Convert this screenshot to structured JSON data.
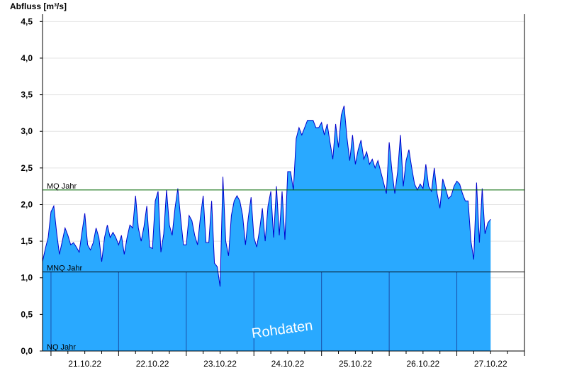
{
  "chart_data": {
    "type": "area",
    "ylabel": "Abfluss [m³/s]",
    "ylim": [
      0,
      4.6
    ],
    "yticks": [
      {
        "value": 0,
        "label": "0,0"
      },
      {
        "value": 0.5,
        "label": "0,5"
      },
      {
        "value": 1.0,
        "label": "1,0"
      },
      {
        "value": 1.5,
        "label": "1,5"
      },
      {
        "value": 2.0,
        "label": "2,0"
      },
      {
        "value": 2.5,
        "label": "2,5"
      },
      {
        "value": 3.0,
        "label": "3,0"
      },
      {
        "value": 3.5,
        "label": "3,5"
      },
      {
        "value": 4.0,
        "label": "4,0"
      },
      {
        "value": 4.5,
        "label": "4,5"
      }
    ],
    "x_unit": "hours since start of 21.10.22",
    "xlim": [
      -3,
      168
    ],
    "xticks": [
      {
        "value": 12,
        "label": "21.10.22"
      },
      {
        "value": 36,
        "label": "22.10.22"
      },
      {
        "value": 60,
        "label": "23.10.22"
      },
      {
        "value": 84,
        "label": "24.10.22"
      },
      {
        "value": 108,
        "label": "25.10.22"
      },
      {
        "value": 132,
        "label": "26.10.22"
      },
      {
        "value": 156,
        "label": "27.10.22"
      }
    ],
    "day_boundaries": [
      0,
      24,
      48,
      72,
      96,
      120,
      144,
      168
    ],
    "reference_lines": [
      {
        "name": "MQ Jahr",
        "value": 2.2,
        "color": "#006600"
      },
      {
        "name": "MNQ Jahr",
        "value": 1.08,
        "color": "#000000"
      },
      {
        "name": "NQ Jahr",
        "value": 0.0,
        "color": "#000000"
      }
    ],
    "watermark": "Rohdaten",
    "colors": {
      "fill": "#29a9ff",
      "line": "#0000cc",
      "mq": "#006600"
    },
    "series": [
      {
        "values": [
          [
            -3,
            1.22
          ],
          [
            -2,
            1.4
          ],
          [
            -1,
            1.55
          ],
          [
            0,
            1.9
          ],
          [
            1,
            1.98
          ],
          [
            2,
            1.62
          ],
          [
            3,
            1.32
          ],
          [
            4,
            1.5
          ],
          [
            5,
            1.68
          ],
          [
            6,
            1.58
          ],
          [
            7,
            1.45
          ],
          [
            8,
            1.48
          ],
          [
            9,
            1.42
          ],
          [
            10,
            1.35
          ],
          [
            11,
            1.62
          ],
          [
            12,
            1.88
          ],
          [
            13,
            1.45
          ],
          [
            14,
            1.38
          ],
          [
            15,
            1.48
          ],
          [
            16,
            1.68
          ],
          [
            17,
            1.55
          ],
          [
            18,
            1.22
          ],
          [
            19,
            1.55
          ],
          [
            20,
            1.72
          ],
          [
            21,
            1.55
          ],
          [
            22,
            1.62
          ],
          [
            23,
            1.55
          ],
          [
            24,
            1.45
          ],
          [
            25,
            1.58
          ],
          [
            26,
            1.32
          ],
          [
            27,
            1.55
          ],
          [
            28,
            1.72
          ],
          [
            29,
            1.68
          ],
          [
            30,
            2.12
          ],
          [
            31,
            1.68
          ],
          [
            32,
            1.5
          ],
          [
            33,
            1.7
          ],
          [
            34,
            1.98
          ],
          [
            35,
            1.42
          ],
          [
            36,
            1.4
          ],
          [
            37,
            2.05
          ],
          [
            38,
            2.18
          ],
          [
            39,
            1.35
          ],
          [
            40,
            1.6
          ],
          [
            41,
            2.2
          ],
          [
            42,
            1.72
          ],
          [
            43,
            1.58
          ],
          [
            44,
            1.95
          ],
          [
            45,
            2.22
          ],
          [
            46,
            1.82
          ],
          [
            47,
            1.45
          ],
          [
            48,
            1.45
          ],
          [
            49,
            1.85
          ],
          [
            50,
            1.78
          ],
          [
            51,
            1.58
          ],
          [
            52,
            1.45
          ],
          [
            53,
            1.82
          ],
          [
            54,
            2.12
          ],
          [
            55,
            1.48
          ],
          [
            56,
            1.48
          ],
          [
            57,
            2.05
          ],
          [
            58,
            1.2
          ],
          [
            59,
            1.15
          ],
          [
            60,
            0.88
          ],
          [
            61,
            2.38
          ],
          [
            62,
            1.5
          ],
          [
            63,
            1.3
          ],
          [
            64,
            1.85
          ],
          [
            65,
            2.05
          ],
          [
            66,
            2.12
          ],
          [
            67,
            2.05
          ],
          [
            68,
            1.85
          ],
          [
            69,
            1.45
          ],
          [
            70,
            1.82
          ],
          [
            71,
            2.1
          ],
          [
            72,
            1.55
          ],
          [
            73,
            1.42
          ],
          [
            74,
            1.65
          ],
          [
            75,
            1.95
          ],
          [
            76,
            1.5
          ],
          [
            77,
            1.98
          ],
          [
            78,
            2.18
          ],
          [
            79,
            1.55
          ],
          [
            80,
            2.25
          ],
          [
            81,
            1.58
          ],
          [
            82,
            2.18
          ],
          [
            83,
            1.52
          ],
          [
            84,
            2.45
          ],
          [
            85,
            2.45
          ],
          [
            86,
            2.2
          ],
          [
            87,
            2.9
          ],
          [
            88,
            3.05
          ],
          [
            89,
            2.95
          ],
          [
            90,
            3.05
          ],
          [
            91,
            3.15
          ],
          [
            92,
            3.15
          ],
          [
            93,
            3.15
          ],
          [
            94,
            3.05
          ],
          [
            95,
            3.05
          ],
          [
            96,
            3.12
          ],
          [
            97,
            2.95
          ],
          [
            98,
            3.1
          ],
          [
            99,
            2.85
          ],
          [
            100,
            2.62
          ],
          [
            101,
            3.1
          ],
          [
            102,
            2.78
          ],
          [
            103,
            3.22
          ],
          [
            104,
            3.35
          ],
          [
            105,
            2.92
          ],
          [
            106,
            2.6
          ],
          [
            107,
            2.95
          ],
          [
            108,
            2.55
          ],
          [
            109,
            2.75
          ],
          [
            110,
            2.88
          ],
          [
            111,
            2.62
          ],
          [
            112,
            2.72
          ],
          [
            113,
            2.55
          ],
          [
            114,
            2.62
          ],
          [
            115,
            2.5
          ],
          [
            116,
            2.6
          ],
          [
            117,
            2.45
          ],
          [
            118,
            2.3
          ],
          [
            119,
            2.15
          ],
          [
            120,
            2.85
          ],
          [
            121,
            2.45
          ],
          [
            122,
            2.15
          ],
          [
            123,
            2.45
          ],
          [
            124,
            2.95
          ],
          [
            125,
            2.25
          ],
          [
            126,
            2.6
          ],
          [
            127,
            2.75
          ],
          [
            128,
            2.5
          ],
          [
            129,
            2.28
          ],
          [
            130,
            2.2
          ],
          [
            131,
            2.28
          ],
          [
            132,
            2.22
          ],
          [
            133,
            2.55
          ],
          [
            134,
            2.25
          ],
          [
            135,
            2.18
          ],
          [
            136,
            2.5
          ],
          [
            137,
            2.15
          ],
          [
            138,
            1.95
          ],
          [
            139,
            2.35
          ],
          [
            140,
            2.22
          ],
          [
            141,
            2.08
          ],
          [
            142,
            2.12
          ],
          [
            143,
            2.25
          ],
          [
            144,
            2.32
          ],
          [
            145,
            2.28
          ],
          [
            146,
            2.15
          ],
          [
            147,
            2.05
          ],
          [
            148,
            2.05
          ],
          [
            149,
            1.5
          ],
          [
            150,
            1.25
          ],
          [
            151,
            2.3
          ],
          [
            152,
            1.48
          ],
          [
            153,
            2.22
          ],
          [
            154,
            1.6
          ],
          [
            155,
            1.75
          ],
          [
            156,
            1.8
          ]
        ]
      }
    ]
  }
}
